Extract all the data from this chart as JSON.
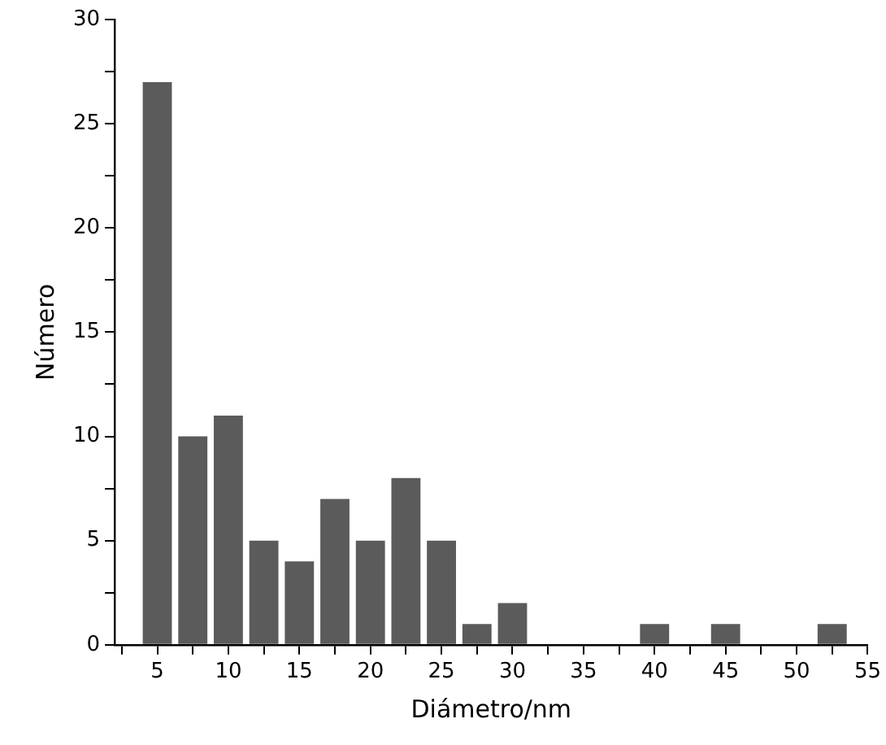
{
  "chart_data": {
    "type": "histogram",
    "xlabel": "Diámetro/nm",
    "ylabel": "Número",
    "bins": [
      3.75,
      6.25,
      8.75,
      11.25,
      13.75,
      16.25,
      18.75,
      21.25,
      23.75,
      26.25,
      28.75,
      31.25,
      33.75,
      36.25,
      38.75,
      41.25,
      43.75,
      46.25,
      48.75,
      51.25,
      53.75
    ],
    "values": [
      27,
      10,
      11,
      5,
      4,
      7,
      5,
      8,
      5,
      1,
      2,
      0,
      0,
      0,
      1,
      0,
      1,
      0,
      0,
      1
    ],
    "color": "#5b5b5b",
    "xlim": [
      2,
      55
    ],
    "ylim": [
      0,
      30
    ],
    "xticks": [
      {
        "value": 2.5,
        "label": null
      },
      5,
      {
        "value": 7.5,
        "label": null
      },
      10,
      {
        "value": 12.5,
        "label": null
      },
      15,
      {
        "value": 17.5,
        "label": null
      },
      20,
      {
        "value": 22.5,
        "label": null
      },
      25,
      {
        "value": 27.5,
        "label": null
      },
      30,
      {
        "value": 32.5,
        "label": null
      },
      35,
      {
        "value": 37.5,
        "label": null
      },
      40,
      {
        "value": 42.5,
        "label": null
      },
      45,
      {
        "value": 47.5,
        "label": null
      },
      50,
      {
        "value": 52.5,
        "label": null
      },
      55
    ],
    "yticks": [
      0,
      {
        "value": 2.5,
        "label": null
      },
      5,
      {
        "value": 7.5,
        "label": null
      },
      10,
      {
        "value": 12.5,
        "label": null
      },
      15,
      {
        "value": 17.5,
        "label": null
      },
      20,
      {
        "value": 22.5,
        "label": null
      },
      25,
      {
        "value": 27.5,
        "label": null
      },
      30
    ],
    "grid": false,
    "legend": false
  }
}
